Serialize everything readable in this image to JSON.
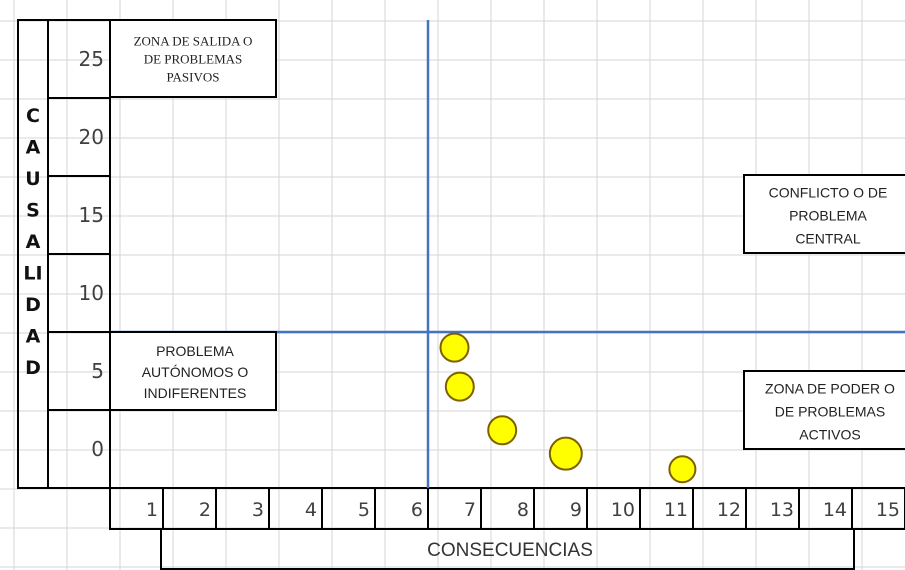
{
  "chart_data": {
    "type": "scatter",
    "ylabel": "CAUSALIDAD",
    "xlabel": "CONSECUENCIAS",
    "y_ticks": [
      "25",
      "20",
      "15",
      "10",
      "5",
      "0"
    ],
    "x_ticks": [
      "1",
      "2",
      "3",
      "4",
      "5",
      "6",
      "7",
      "8",
      "9",
      "10",
      "11",
      "12",
      "13",
      "14",
      "15"
    ],
    "xlim": [
      0,
      15
    ],
    "ylim": [
      -2.5,
      27.5
    ],
    "divider_x": 6,
    "divider_y": 7.5,
    "points": [
      {
        "x": 6.5,
        "y": 6.5
      },
      {
        "x": 6.6,
        "y": 4.0
      },
      {
        "x": 7.4,
        "y": 1.2
      },
      {
        "x": 8.6,
        "y": -0.3
      },
      {
        "x": 10.8,
        "y": -1.3
      }
    ],
    "zones": [
      {
        "id": "zone-salida",
        "lines": [
          "ZONA DE SALIDA O",
          "DE PROBLEMAS",
          "PASIVOS"
        ]
      },
      {
        "id": "zone-autonomos",
        "lines": [
          "PROBLEMA",
          "AUTÓNOMOS O",
          "INDIFERENTES"
        ]
      },
      {
        "id": "zone-central",
        "lines": [
          "CONFLICTO O DE",
          "PROBLEMA",
          "CENTRAL"
        ]
      },
      {
        "id": "zone-poder",
        "lines": [
          "ZONA DE PODER O",
          "DE PROBLEMAS",
          "ACTIVOS"
        ]
      }
    ],
    "grid": true,
    "colors": {
      "divider": "#4472C4",
      "point_fill": "#FFFF00",
      "point_stroke": "#7F6000",
      "grid": "#D4D4D4",
      "frame": "#000000"
    }
  }
}
